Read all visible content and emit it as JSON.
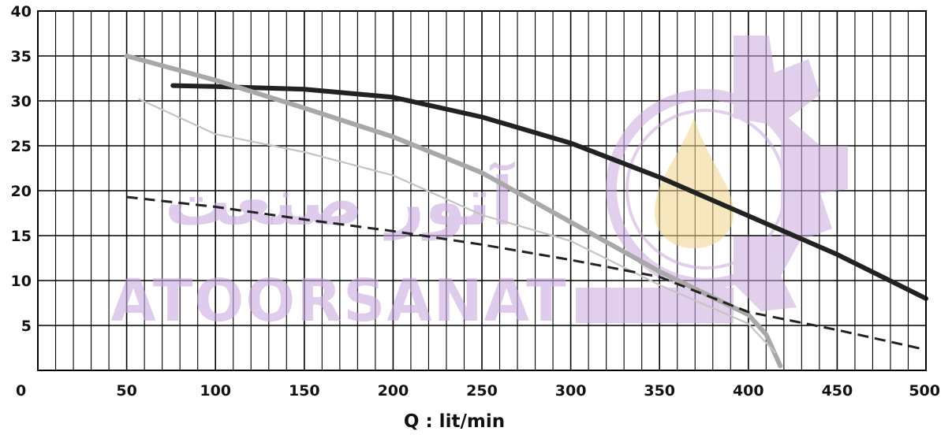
{
  "chart_data": {
    "type": "line",
    "xlabel": "Q : lit/min",
    "ylabel": "",
    "xlim": [
      0,
      500
    ],
    "ylim": [
      0,
      40
    ],
    "x_ticks": [
      "0",
      "50",
      "100",
      "150",
      "200",
      "250",
      "300",
      "350",
      "400",
      "450",
      "500"
    ],
    "y_ticks": [
      "5",
      "10",
      "15",
      "20",
      "25",
      "30",
      "35",
      "40"
    ],
    "grid": true,
    "series": [
      {
        "color": "#222222",
        "style": "solid-thick",
        "points": [
          [
            76,
            31.7
          ],
          [
            100,
            31.6
          ],
          [
            150,
            31.3
          ],
          [
            200,
            30.4
          ],
          [
            250,
            28.2
          ],
          [
            300,
            25.3
          ],
          [
            350,
            21.5
          ],
          [
            400,
            17.2
          ],
          [
            450,
            12.9
          ],
          [
            500,
            8.0
          ]
        ]
      },
      {
        "color": "#a8a8a8",
        "style": "solid-thick",
        "points": [
          [
            50,
            35.0
          ],
          [
            100,
            32.3
          ],
          [
            150,
            29.2
          ],
          [
            200,
            26.0
          ],
          [
            250,
            22.0
          ],
          [
            300,
            16.5
          ],
          [
            350,
            11.0
          ],
          [
            400,
            6.2
          ],
          [
            410,
            4.0
          ],
          [
            418,
            0.5
          ]
        ]
      },
      {
        "color": "#c4c4c4",
        "style": "solid-thin",
        "points": [
          [
            57,
            30.2
          ],
          [
            100,
            26.3
          ],
          [
            150,
            24.3
          ],
          [
            200,
            21.7
          ],
          [
            250,
            17.3
          ],
          [
            300,
            14.4
          ],
          [
            350,
            9.5
          ],
          [
            400,
            5.2
          ],
          [
            415,
            2.0
          ]
        ]
      },
      {
        "color": "#222222",
        "style": "dashed",
        "points": [
          [
            50,
            19.3
          ],
          [
            100,
            18.2
          ],
          [
            150,
            16.8
          ],
          [
            200,
            15.5
          ],
          [
            250,
            14.0
          ],
          [
            300,
            12.3
          ],
          [
            350,
            10.4
          ],
          [
            400,
            6.5
          ],
          [
            450,
            4.5
          ],
          [
            500,
            2.3
          ]
        ]
      }
    ]
  },
  "watermark": {
    "latin_text": "ATOORSANAT",
    "arabic_text": "آتور صنعت",
    "color": "#c9a8de"
  }
}
